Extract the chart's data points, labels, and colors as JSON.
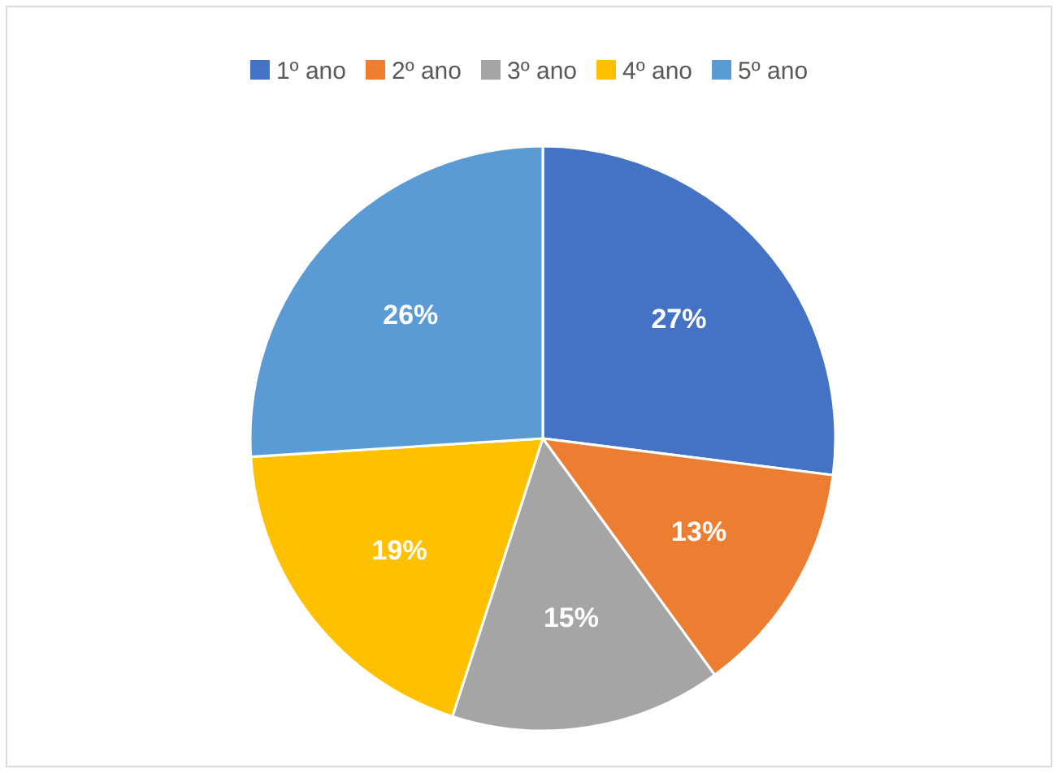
{
  "chart_data": {
    "type": "pie",
    "categories": [
      "1º ano",
      "2º ano",
      "3º ano",
      "4º ano",
      "5º ano"
    ],
    "values": [
      27,
      13,
      15,
      19,
      26
    ],
    "colors": [
      "#4472c4",
      "#ed7d31",
      "#a5a5a5",
      "#ffc000",
      "#5b9bd5"
    ],
    "value_labels": [
      "27%",
      "13%",
      "15%",
      "19%",
      "26%"
    ],
    "legend": "top"
  }
}
